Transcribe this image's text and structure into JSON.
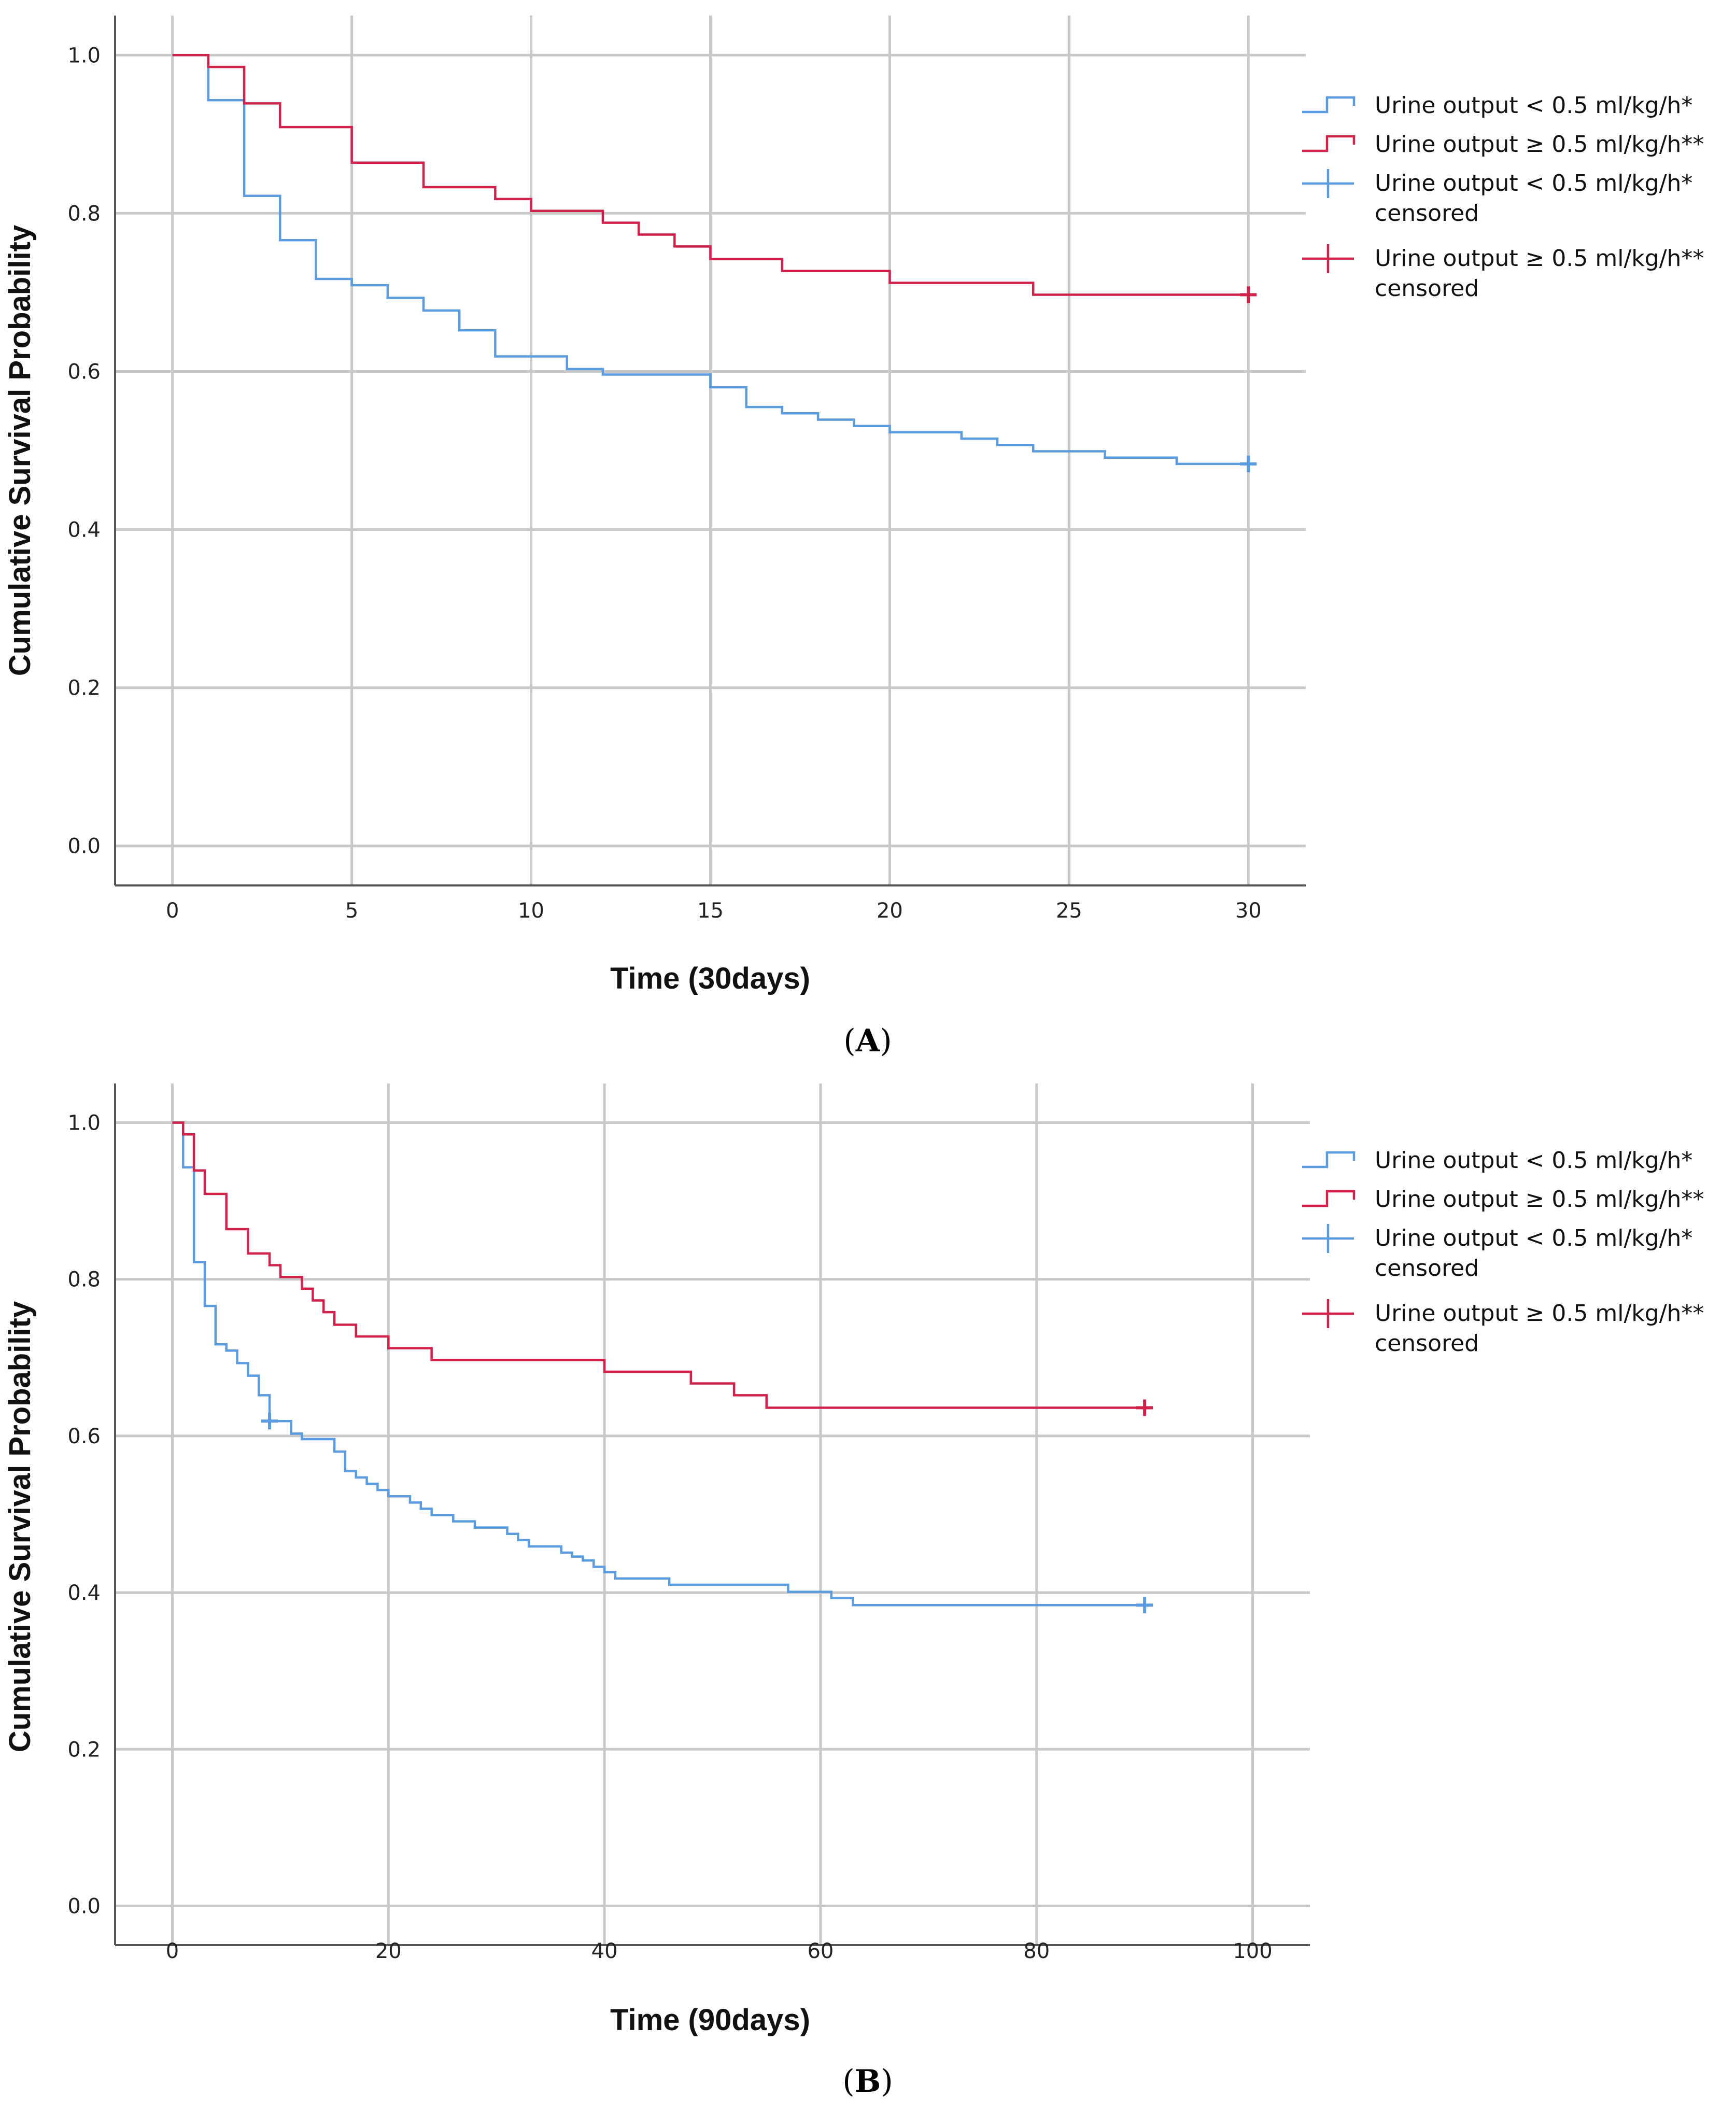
{
  "colors": {
    "low_urine": "#5b9be0",
    "normal_urine": "#d0224a",
    "grid": "#c8c8c8",
    "axis": "#555555"
  },
  "legend": {
    "items": [
      {
        "label": "Urine output < 0.5 ml/kg/h*",
        "sub": "",
        "series": "low",
        "marker": "step"
      },
      {
        "label": "Urine output ≥ 0.5 ml/kg/h**",
        "sub": "",
        "series": "normal",
        "marker": "step"
      },
      {
        "label": "Urine output < 0.5 ml/kg/h*",
        "sub": "censored",
        "series": "low",
        "marker": "plus"
      },
      {
        "label": "Urine output ≥ 0.5 ml/kg/h**",
        "sub": "censored",
        "series": "normal",
        "marker": "plus"
      }
    ]
  },
  "chart_data": [
    {
      "type": "line",
      "subtype": "kaplan-meier-step",
      "panel": "A",
      "panel_label": "A",
      "xlabel": "Time (30days)",
      "ylabel": "Cumulative Survival Probability",
      "xlim": [
        -1.6,
        31.6
      ],
      "ylim": [
        -0.05,
        1.05
      ],
      "xticks": [
        0,
        5,
        10,
        15,
        20,
        25,
        30
      ],
      "yticks": [
        0.0,
        0.2,
        0.4,
        0.6,
        0.8,
        1.0
      ],
      "ytick_labels": [
        "0.0",
        "0.2",
        "0.4",
        "0.6",
        "0.8",
        "1.0"
      ],
      "grid": true,
      "legend_position": "right",
      "series": [
        {
          "name": "Urine output < 0.5 ml/kg/h*",
          "key": "low",
          "steps": [
            [
              0,
              1.0
            ],
            [
              1,
              0.943
            ],
            [
              2,
              0.822
            ],
            [
              3,
              0.766
            ],
            [
              4,
              0.717
            ],
            [
              5,
              0.709
            ],
            [
              6,
              0.693
            ],
            [
              7,
              0.677
            ],
            [
              8,
              0.652
            ],
            [
              9,
              0.619
            ],
            [
              11,
              0.603
            ],
            [
              12,
              0.596
            ],
            [
              15,
              0.58
            ],
            [
              16,
              0.555
            ],
            [
              17,
              0.547
            ],
            [
              18,
              0.539
            ],
            [
              19,
              0.531
            ],
            [
              20,
              0.523
            ],
            [
              22,
              0.515
            ],
            [
              23,
              0.507
            ],
            [
              24,
              0.499
            ],
            [
              26,
              0.491
            ],
            [
              28,
              0.483
            ]
          ],
          "end_x": 30,
          "censored": [
            [
              30,
              0.483
            ]
          ]
        },
        {
          "name": "Urine output ≥ 0.5 ml/kg/h**",
          "key": "normal",
          "steps": [
            [
              0,
              1.0
            ],
            [
              1,
              0.985
            ],
            [
              2,
              0.939
            ],
            [
              3,
              0.909
            ],
            [
              5,
              0.864
            ],
            [
              7,
              0.833
            ],
            [
              9,
              0.818
            ],
            [
              10,
              0.803
            ],
            [
              12,
              0.788
            ],
            [
              13,
              0.773
            ],
            [
              14,
              0.758
            ],
            [
              15,
              0.742
            ],
            [
              17,
              0.727
            ],
            [
              20,
              0.712
            ],
            [
              24,
              0.697
            ]
          ],
          "end_x": 30,
          "censored": [
            [
              30,
              0.697
            ]
          ]
        }
      ]
    },
    {
      "type": "line",
      "subtype": "kaplan-meier-step",
      "panel": "B",
      "panel_label": "B",
      "xlabel": "Time (90days)",
      "ylabel": "Cumulative Survival Probability",
      "xlim": [
        -5.3,
        105.3
      ],
      "ylim": [
        -0.05,
        1.05
      ],
      "xticks": [
        0,
        20,
        40,
        60,
        80,
        100
      ],
      "yticks": [
        0.0,
        0.2,
        0.4,
        0.6,
        0.8,
        1.0
      ],
      "ytick_labels": [
        "0.0",
        "0.2",
        "0.4",
        "0.6",
        "0.8",
        "1.0"
      ],
      "grid": true,
      "legend_position": "right",
      "series": [
        {
          "name": "Urine output < 0.5 ml/kg/h*",
          "key": "low",
          "steps": [
            [
              0,
              1.0
            ],
            [
              1,
              0.943
            ],
            [
              2,
              0.822
            ],
            [
              3,
              0.766
            ],
            [
              4,
              0.717
            ],
            [
              5,
              0.709
            ],
            [
              6,
              0.693
            ],
            [
              7,
              0.677
            ],
            [
              8,
              0.652
            ],
            [
              9,
              0.619
            ],
            [
              11,
              0.603
            ],
            [
              12,
              0.596
            ],
            [
              15,
              0.58
            ],
            [
              16,
              0.555
            ],
            [
              17,
              0.547
            ],
            [
              18,
              0.539
            ],
            [
              19,
              0.531
            ],
            [
              20,
              0.523
            ],
            [
              22,
              0.515
            ],
            [
              23,
              0.507
            ],
            [
              24,
              0.499
            ],
            [
              26,
              0.491
            ],
            [
              28,
              0.483
            ],
            [
              31,
              0.475
            ],
            [
              32,
              0.467
            ],
            [
              33,
              0.459
            ],
            [
              36,
              0.451
            ],
            [
              37,
              0.446
            ],
            [
              38,
              0.441
            ],
            [
              39,
              0.433
            ],
            [
              40,
              0.426
            ],
            [
              41,
              0.418
            ],
            [
              46,
              0.41
            ],
            [
              57,
              0.401
            ],
            [
              61,
              0.393
            ],
            [
              63,
              0.384
            ]
          ],
          "end_x": 90,
          "censored": [
            [
              9,
              0.619
            ],
            [
              90,
              0.384
            ]
          ]
        },
        {
          "name": "Urine output ≥ 0.5 ml/kg/h**",
          "key": "normal",
          "steps": [
            [
              0,
              1.0
            ],
            [
              1,
              0.985
            ],
            [
              2,
              0.939
            ],
            [
              3,
              0.909
            ],
            [
              5,
              0.864
            ],
            [
              7,
              0.833
            ],
            [
              9,
              0.818
            ],
            [
              10,
              0.803
            ],
            [
              12,
              0.788
            ],
            [
              13,
              0.773
            ],
            [
              14,
              0.758
            ],
            [
              15,
              0.742
            ],
            [
              17,
              0.727
            ],
            [
              20,
              0.712
            ],
            [
              24,
              0.697
            ],
            [
              40,
              0.682
            ],
            [
              48,
              0.667
            ],
            [
              52,
              0.652
            ],
            [
              55,
              0.636
            ]
          ],
          "end_x": 90,
          "censored": [
            [
              90,
              0.636
            ]
          ]
        }
      ]
    }
  ]
}
